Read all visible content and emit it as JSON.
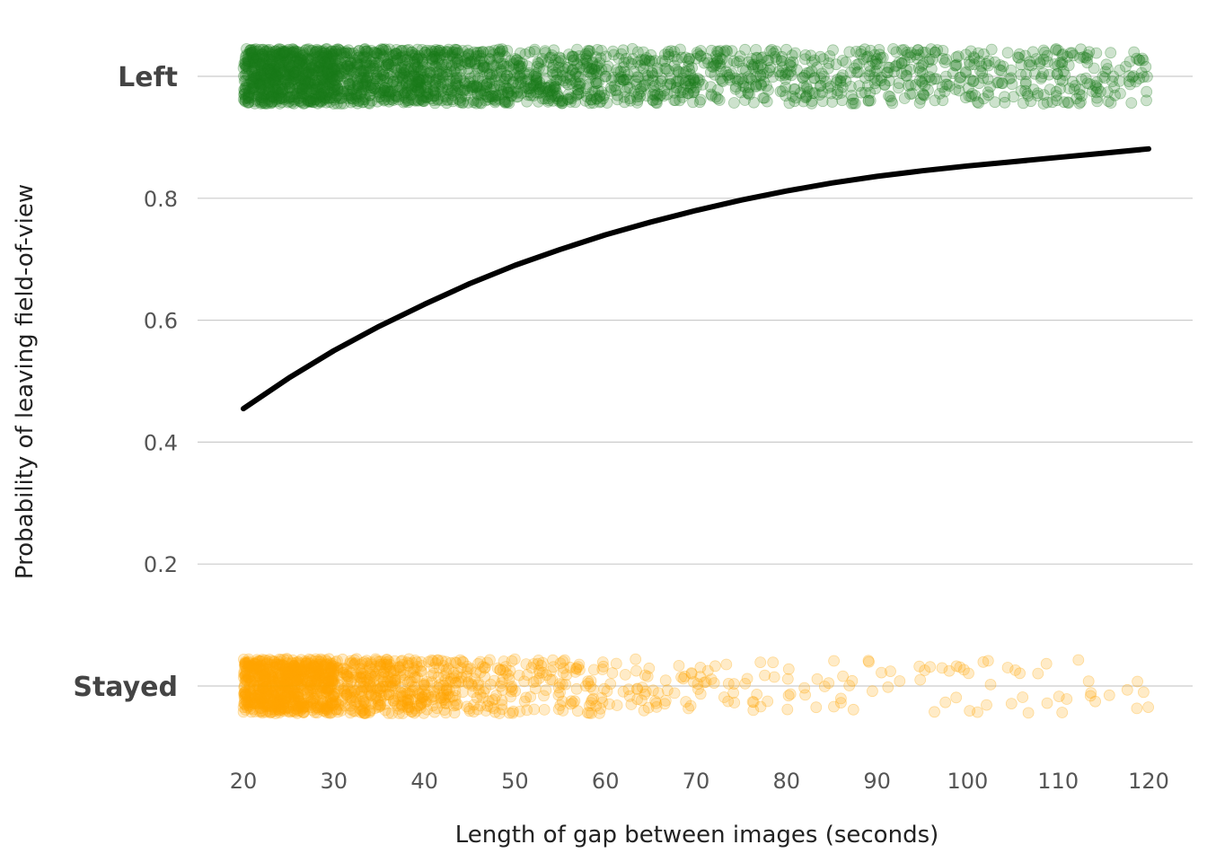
{
  "chart_data": {
    "type": "scatter",
    "title": "",
    "xlabel": "Length of gap between images (seconds)",
    "ylabel": "Probability of leaving field-of-view",
    "xlim": [
      20,
      120
    ],
    "ylim": [
      0,
      1
    ],
    "x_ticks": [
      {
        "value": 20,
        "label": "20"
      },
      {
        "value": 30,
        "label": "30"
      },
      {
        "value": 40,
        "label": "40"
      },
      {
        "value": 50,
        "label": "50"
      },
      {
        "value": 60,
        "label": "60"
      },
      {
        "value": 70,
        "label": "70"
      },
      {
        "value": 80,
        "label": "80"
      },
      {
        "value": 90,
        "label": "90"
      },
      {
        "value": 100,
        "label": "100"
      },
      {
        "value": 110,
        "label": "110"
      },
      {
        "value": 120,
        "label": "120"
      }
    ],
    "y_ticks": [
      {
        "value": 0,
        "label": "Stayed",
        "bold": true
      },
      {
        "value": 0.2,
        "label": "0.2",
        "bold": false
      },
      {
        "value": 0.4,
        "label": "0.4",
        "bold": false
      },
      {
        "value": 0.6,
        "label": "0.6",
        "bold": false
      },
      {
        "value": 0.8,
        "label": "0.8",
        "bold": false
      },
      {
        "value": 1,
        "label": "Left",
        "bold": true
      }
    ],
    "grid": "horizontal",
    "legend": "none",
    "colors": {
      "left_points": "#1a7a1a",
      "stayed_points": "#ffa500",
      "curve": "#000000",
      "grid": "#cccccc"
    },
    "jitter_y": 0.045,
    "point_groups": [
      {
        "outcome": 1,
        "x_ranges": [
          {
            "from": 20,
            "to": 30,
            "n": 750
          },
          {
            "from": 30,
            "to": 40,
            "n": 450
          },
          {
            "from": 40,
            "to": 50,
            "n": 330
          },
          {
            "from": 50,
            "to": 60,
            "n": 240
          },
          {
            "from": 60,
            "to": 70,
            "n": 170
          },
          {
            "from": 70,
            "to": 80,
            "n": 140
          },
          {
            "from": 80,
            "to": 90,
            "n": 120
          },
          {
            "from": 90,
            "to": 100,
            "n": 110
          },
          {
            "from": 100,
            "to": 110,
            "n": 100
          },
          {
            "from": 110,
            "to": 120,
            "n": 90
          }
        ]
      },
      {
        "outcome": 0,
        "x_ranges": [
          {
            "from": 20,
            "to": 30,
            "n": 700
          },
          {
            "from": 30,
            "to": 40,
            "n": 320
          },
          {
            "from": 40,
            "to": 50,
            "n": 160
          },
          {
            "from": 50,
            "to": 60,
            "n": 85
          },
          {
            "from": 60,
            "to": 70,
            "n": 45
          },
          {
            "from": 70,
            "to": 80,
            "n": 30
          },
          {
            "from": 80,
            "to": 90,
            "n": 22
          },
          {
            "from": 90,
            "to": 100,
            "n": 16
          },
          {
            "from": 100,
            "to": 110,
            "n": 16
          },
          {
            "from": 110,
            "to": 120,
            "n": 14
          }
        ]
      }
    ],
    "fitted_curve": {
      "x": [
        20,
        25,
        30,
        35,
        40,
        45,
        50,
        55,
        60,
        65,
        70,
        75,
        80,
        85,
        90,
        95,
        100,
        105,
        110,
        115,
        120
      ],
      "y": [
        0.455,
        0.505,
        0.55,
        0.59,
        0.626,
        0.66,
        0.69,
        0.716,
        0.74,
        0.761,
        0.78,
        0.797,
        0.812,
        0.825,
        0.836,
        0.845,
        0.853,
        0.86,
        0.867,
        0.874,
        0.881
      ]
    }
  }
}
